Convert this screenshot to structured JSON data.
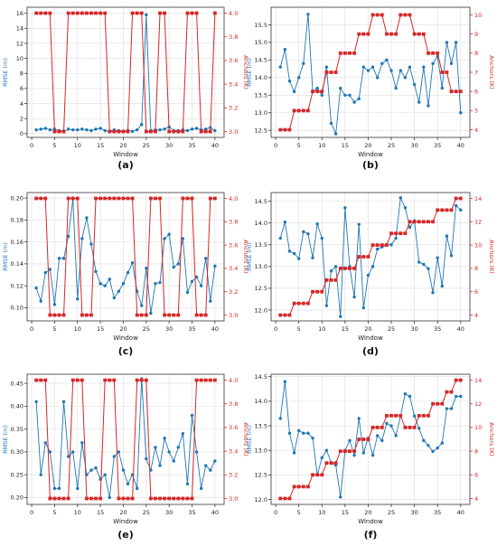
{
  "colors": {
    "rmse": "#1f77b4",
    "anchors": "#d62728",
    "grid": "#dddddd",
    "axis": "#333333"
  },
  "chart_data": [
    {
      "panel": "(a)",
      "type": "line",
      "xlabel": "Window",
      "ylabel_left": "RMSE (m)",
      "ylabel_right": "Anchors (K)",
      "xlim": [
        -1,
        42
      ],
      "ylim_left": [
        -0.5,
        16.8
      ],
      "ylim_right": [
        2.95,
        4.05
      ],
      "xticks": [
        0,
        5,
        10,
        15,
        20,
        25,
        30,
        35,
        40
      ],
      "yticks_left": [
        0,
        2,
        4,
        6,
        8,
        10,
        12,
        14,
        16
      ],
      "yticks_right": [
        3.0,
        3.2,
        3.4,
        3.6,
        3.8,
        4.0
      ],
      "ytick_decimals_left": 0,
      "ytick_decimals_right": 1,
      "x": [
        1,
        2,
        3,
        4,
        5,
        6,
        7,
        8,
        9,
        10,
        11,
        12,
        13,
        14,
        15,
        16,
        17,
        18,
        19,
        20,
        21,
        22,
        23,
        24,
        25,
        26,
        27,
        28,
        29,
        30,
        31,
        32,
        33,
        34,
        35,
        36,
        37,
        38,
        39,
        40
      ],
      "series": [
        {
          "axis": "left",
          "values": [
            0.5,
            0.6,
            0.7,
            0.5,
            0.6,
            0.4,
            0.3,
            0.6,
            0.5,
            0.5,
            0.6,
            0.5,
            0.4,
            0.6,
            0.7,
            0.4,
            0.3,
            0.5,
            0.4,
            0.3,
            0.4,
            0.3,
            0.5,
            1.2,
            15.8,
            0.4,
            0.5,
            0.5,
            0.6,
            0.9,
            0.4,
            0.4,
            0.5,
            0.4,
            0.6,
            0.7,
            0.5,
            0.6,
            0.8,
            0.4
          ]
        },
        {
          "axis": "right",
          "values": [
            4,
            4,
            4,
            4,
            3,
            3,
            3,
            4,
            4,
            4,
            4,
            4,
            4,
            4,
            4,
            4,
            3,
            3,
            3,
            3,
            3,
            4,
            4,
            4,
            3,
            3,
            3,
            4,
            4,
            3,
            3,
            3,
            3,
            4,
            4,
            4,
            3,
            3,
            3,
            4
          ]
        }
      ]
    },
    {
      "panel": "(b)",
      "type": "line",
      "xlabel": "Window",
      "ylabel_left": "RMSE (m)",
      "ylabel_right": "Anchors (K)",
      "xlim": [
        -1,
        42
      ],
      "ylim_left": [
        12.3,
        16.0
      ],
      "ylim_right": [
        3.6,
        10.4
      ],
      "xticks": [
        0,
        5,
        10,
        15,
        20,
        25,
        30,
        35,
        40
      ],
      "yticks_left": [
        12.5,
        13.0,
        13.5,
        14.0,
        14.5,
        15.0,
        15.5
      ],
      "yticks_right": [
        4,
        5,
        6,
        7,
        8,
        9,
        10
      ],
      "ytick_decimals_left": 1,
      "ytick_decimals_right": 0,
      "x": [
        1,
        2,
        3,
        4,
        5,
        6,
        7,
        8,
        9,
        10,
        11,
        12,
        13,
        14,
        15,
        16,
        17,
        18,
        19,
        20,
        21,
        22,
        23,
        24,
        25,
        26,
        27,
        28,
        29,
        30,
        31,
        32,
        33,
        34,
        35,
        36,
        37,
        38,
        39,
        40
      ],
      "series": [
        {
          "axis": "left",
          "values": [
            14.3,
            14.8,
            13.9,
            13.6,
            14.0,
            14.4,
            15.8,
            13.6,
            13.7,
            13.5,
            14.3,
            12.7,
            12.4,
            13.7,
            13.5,
            13.5,
            13.3,
            13.4,
            14.3,
            14.2,
            14.3,
            14.0,
            14.4,
            14.5,
            14.2,
            13.7,
            14.2,
            14.0,
            14.3,
            13.8,
            13.3,
            14.3,
            13.2,
            14.4,
            14.6,
            13.7,
            15.0,
            14.4,
            15.0,
            13.0
          ]
        },
        {
          "axis": "right",
          "values": [
            4,
            4,
            4,
            5,
            5,
            5,
            5,
            6,
            6,
            6,
            7,
            7,
            7,
            8,
            8,
            8,
            8,
            9,
            9,
            9,
            10,
            10,
            10,
            9,
            9,
            9,
            10,
            10,
            10,
            9,
            9,
            9,
            8,
            8,
            8,
            7,
            7,
            6,
            6,
            6
          ]
        }
      ]
    },
    {
      "panel": "(c)",
      "type": "line",
      "xlabel": "Window",
      "ylabel_left": "RMSE (m)",
      "ylabel_right": "Anchors (K)",
      "xlim": [
        -1,
        42
      ],
      "ylim_left": [
        0.088,
        0.205
      ],
      "ylim_right": [
        2.95,
        4.05
      ],
      "xticks": [
        0,
        5,
        10,
        15,
        20,
        25,
        30,
        35,
        40
      ],
      "yticks_left": [
        0.1,
        0.12,
        0.14,
        0.16,
        0.18,
        0.2
      ],
      "yticks_right": [
        3.0,
        3.2,
        3.4,
        3.6,
        3.8,
        4.0
      ],
      "ytick_decimals_left": 2,
      "ytick_decimals_right": 1,
      "x": [
        1,
        2,
        3,
        4,
        5,
        6,
        7,
        8,
        9,
        10,
        11,
        12,
        13,
        14,
        15,
        16,
        17,
        18,
        19,
        20,
        21,
        22,
        23,
        24,
        25,
        26,
        27,
        28,
        29,
        30,
        31,
        32,
        33,
        34,
        35,
        36,
        37,
        38,
        39,
        40
      ],
      "series": [
        {
          "axis": "left",
          "values": [
            0.118,
            0.106,
            0.132,
            0.135,
            0.103,
            0.145,
            0.145,
            0.165,
            0.199,
            0.108,
            0.163,
            0.182,
            0.158,
            0.133,
            0.122,
            0.12,
            0.126,
            0.109,
            0.115,
            0.122,
            0.132,
            0.141,
            0.115,
            0.102,
            0.136,
            0.095,
            0.122,
            0.123,
            0.163,
            0.167,
            0.137,
            0.14,
            0.163,
            0.114,
            0.124,
            0.128,
            0.12,
            0.145,
            0.106,
            0.138
          ]
        },
        {
          "axis": "right",
          "values": [
            4,
            4,
            4,
            3,
            3,
            3,
            3,
            4,
            4,
            4,
            3,
            3,
            3,
            4,
            4,
            4,
            4,
            4,
            4,
            4,
            4,
            4,
            3,
            3,
            3,
            4,
            4,
            4,
            3,
            3,
            3,
            3,
            4,
            4,
            4,
            3,
            3,
            3,
            4,
            4
          ]
        }
      ]
    },
    {
      "panel": "(d)",
      "type": "line",
      "xlabel": "Window",
      "ylabel_left": "RMSE (m)",
      "ylabel_right": "Anchors (K)",
      "xlim": [
        -1,
        42
      ],
      "ylim_left": [
        11.75,
        14.7
      ],
      "ylim_right": [
        3.5,
        14.5
      ],
      "xticks": [
        0,
        5,
        10,
        15,
        20,
        25,
        30,
        35,
        40
      ],
      "yticks_left": [
        12.0,
        12.5,
        13.0,
        13.5,
        14.0,
        14.5
      ],
      "yticks_right": [
        4,
        6,
        8,
        10,
        12,
        14
      ],
      "ytick_decimals_left": 1,
      "ytick_decimals_right": 0,
      "x": [
        1,
        2,
        3,
        4,
        5,
        6,
        7,
        8,
        9,
        10,
        11,
        12,
        13,
        14,
        15,
        16,
        17,
        18,
        19,
        20,
        21,
        22,
        23,
        24,
        25,
        26,
        27,
        28,
        29,
        30,
        31,
        32,
        33,
        34,
        35,
        36,
        37,
        38,
        39,
        40
      ],
      "series": [
        {
          "axis": "left",
          "values": [
            13.65,
            14.02,
            13.35,
            13.3,
            13.18,
            13.8,
            13.75,
            13.2,
            13.98,
            13.65,
            12.1,
            12.9,
            13.0,
            11.85,
            14.35,
            13.0,
            12.3,
            13.97,
            12.05,
            12.8,
            13.0,
            13.4,
            13.45,
            13.5,
            13.5,
            13.65,
            14.58,
            14.35,
            13.9,
            14.05,
            13.1,
            13.05,
            12.95,
            12.4,
            13.2,
            12.55,
            13.7,
            13.25,
            14.4,
            14.3
          ]
        },
        {
          "axis": "right",
          "values": [
            4,
            4,
            4,
            5,
            5,
            5,
            5,
            6,
            6,
            6,
            7,
            7,
            7,
            8,
            8,
            8,
            8,
            9,
            9,
            9,
            10,
            10,
            10,
            10,
            11,
            11,
            11,
            11,
            12,
            12,
            12,
            12,
            12,
            12,
            13,
            13,
            13,
            13,
            14,
            14
          ]
        }
      ]
    },
    {
      "panel": "(e)",
      "type": "line",
      "xlabel": "Window",
      "ylabel_left": "RMSE (m)",
      "ylabel_right": "Anchors (K)",
      "xlim": [
        -1,
        42
      ],
      "ylim_left": [
        0.185,
        0.47
      ],
      "ylim_right": [
        2.95,
        4.05
      ],
      "xticks": [
        0,
        5,
        10,
        15,
        20,
        25,
        30,
        35,
        40
      ],
      "yticks_left": [
        0.2,
        0.25,
        0.3,
        0.35,
        0.4,
        0.45
      ],
      "yticks_right": [
        3.0,
        3.2,
        3.4,
        3.6,
        3.8,
        4.0
      ],
      "ytick_decimals_left": 2,
      "ytick_decimals_right": 1,
      "x": [
        1,
        2,
        3,
        4,
        5,
        6,
        7,
        8,
        9,
        10,
        11,
        12,
        13,
        14,
        15,
        16,
        17,
        18,
        19,
        20,
        21,
        22,
        23,
        24,
        25,
        26,
        27,
        28,
        29,
        30,
        31,
        32,
        33,
        34,
        35,
        36,
        37,
        38,
        39,
        40
      ],
      "series": [
        {
          "axis": "left",
          "values": [
            0.41,
            0.25,
            0.32,
            0.3,
            0.22,
            0.22,
            0.41,
            0.29,
            0.3,
            0.22,
            0.32,
            0.25,
            0.26,
            0.265,
            0.24,
            0.25,
            0.2,
            0.29,
            0.3,
            0.26,
            0.23,
            0.25,
            0.22,
            0.46,
            0.285,
            0.26,
            0.31,
            0.27,
            0.33,
            0.3,
            0.28,
            0.31,
            0.34,
            0.23,
            0.38,
            0.3,
            0.22,
            0.27,
            0.26,
            0.28
          ]
        },
        {
          "axis": "right",
          "values": [
            4,
            4,
            4,
            3,
            3,
            3,
            3,
            3,
            4,
            4,
            4,
            3,
            3,
            3,
            3,
            4,
            4,
            4,
            3,
            3,
            3,
            3,
            4,
            4,
            4,
            3,
            3,
            3,
            3,
            3,
            3,
            3,
            3,
            3,
            3,
            4,
            4,
            4,
            4,
            4
          ]
        }
      ]
    },
    {
      "panel": "(f)",
      "type": "line",
      "xlabel": "Window",
      "ylabel_left": "RMSE (m)",
      "ylabel_right": "Anchors (K)",
      "xlim": [
        -1,
        42
      ],
      "ylim_left": [
        11.9,
        14.55
      ],
      "ylim_right": [
        3.5,
        14.5
      ],
      "xticks": [
        0,
        5,
        10,
        15,
        20,
        25,
        30,
        35,
        40
      ],
      "yticks_left": [
        12.0,
        12.5,
        13.0,
        13.5,
        14.0,
        14.5
      ],
      "yticks_right": [
        4,
        6,
        8,
        10,
        12,
        14
      ],
      "ytick_decimals_left": 1,
      "ytick_decimals_right": 0,
      "x": [
        1,
        2,
        3,
        4,
        5,
        6,
        7,
        8,
        9,
        10,
        11,
        12,
        13,
        14,
        15,
        16,
        17,
        18,
        19,
        20,
        21,
        22,
        23,
        24,
        25,
        26,
        27,
        28,
        29,
        30,
        31,
        32,
        33,
        34,
        35,
        36,
        37,
        38,
        39,
        40
      ],
      "series": [
        {
          "axis": "left",
          "values": [
            13.65,
            14.4,
            13.35,
            12.95,
            13.4,
            13.35,
            13.35,
            13.25,
            12.5,
            12.85,
            13.0,
            12.75,
            12.7,
            12.05,
            13.0,
            13.2,
            12.9,
            13.65,
            12.95,
            13.25,
            12.9,
            13.3,
            13.2,
            13.55,
            13.5,
            13.3,
            13.7,
            14.15,
            14.1,
            13.7,
            13.45,
            13.2,
            13.1,
            12.98,
            13.05,
            13.15,
            13.85,
            13.85,
            14.1,
            14.1
          ]
        },
        {
          "axis": "right",
          "values": [
            4,
            4,
            4,
            5,
            5,
            5,
            5,
            6,
            6,
            6,
            7,
            7,
            7,
            8,
            8,
            8,
            8,
            9,
            9,
            9,
            10,
            10,
            10,
            11,
            11,
            11,
            11,
            10,
            10,
            10,
            11,
            11,
            11,
            12,
            12,
            12,
            13,
            13,
            14,
            14
          ]
        }
      ]
    }
  ]
}
